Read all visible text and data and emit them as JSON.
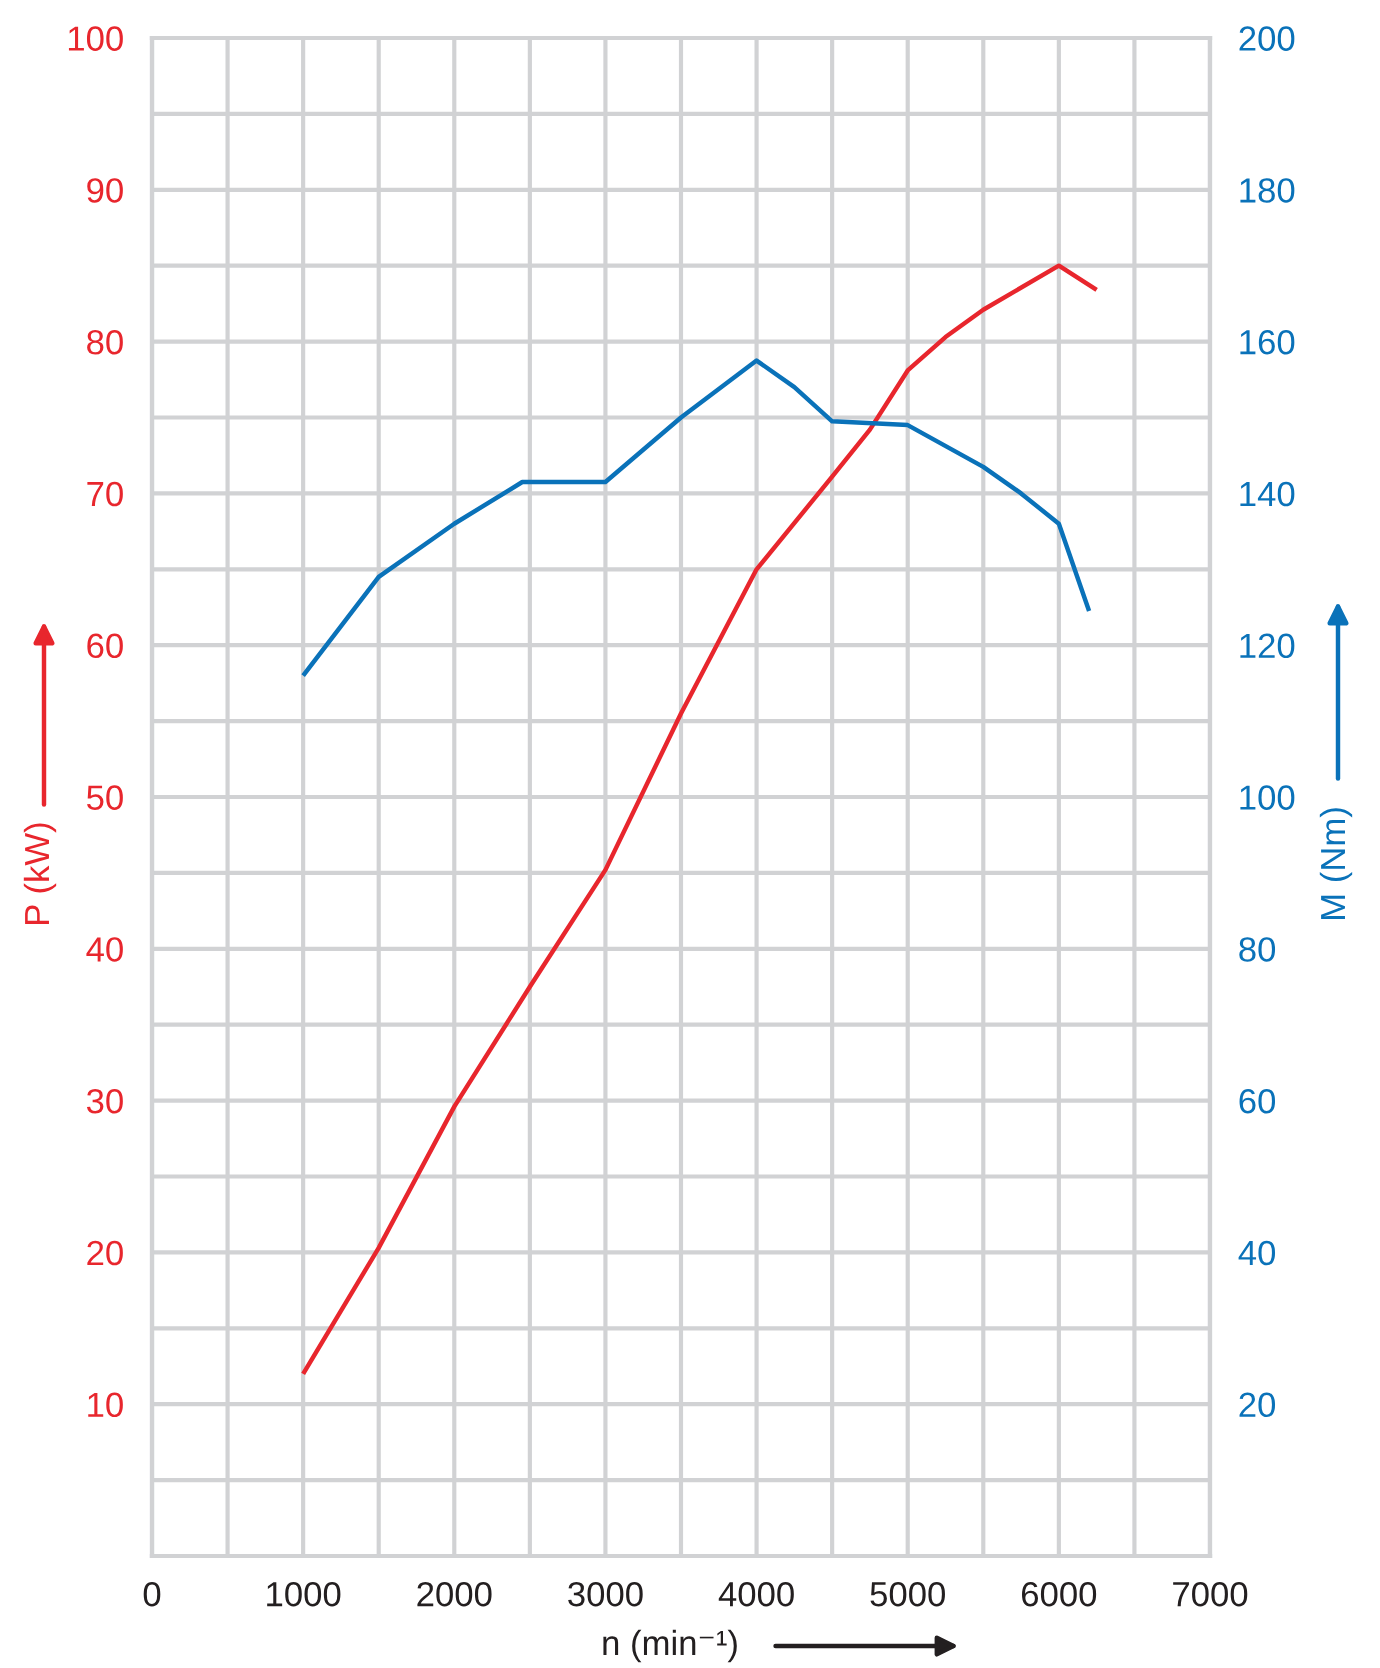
{
  "chart_data": {
    "type": "line",
    "xlabel": "n (min⁻¹)",
    "ylabel": "P (kW)",
    "y2label": "M (Nm)",
    "series": [
      {
        "color": "#e8262d",
        "x": [
          1000,
          1500,
          2000,
          2500,
          3000,
          3500,
          4000,
          4500,
          4750,
          5000,
          5250,
          5500,
          6000,
          6250
        ],
        "values": [
          12,
          20.3,
          29.6,
          37.5,
          45.2,
          55.5,
          65,
          71.1,
          74.2,
          78.1,
          80.3,
          82.1,
          85,
          83.4
        ]
      },
      {
        "color": "#0a72b9",
        "axis": "y2",
        "x": [
          1000,
          1500,
          2000,
          2450,
          3000,
          3500,
          4000,
          4250,
          4500,
          5000,
          5500,
          5750,
          6000,
          6200
        ],
        "values": [
          116,
          129,
          136,
          141.5,
          141.5,
          150,
          157.5,
          154,
          149.5,
          149,
          143.5,
          140,
          136,
          124.5
        ]
      }
    ],
    "xlim": [
      0,
      7000
    ],
    "xticks": [
      0,
      {
        "value": 500,
        "label": null
      },
      1000,
      {
        "value": 1500,
        "label": null
      },
      2000,
      {
        "value": 2500,
        "label": null
      },
      3000,
      {
        "value": 3500,
        "label": null
      },
      4000,
      {
        "value": 4500,
        "label": null
      },
      5000,
      {
        "value": 5500,
        "label": null
      },
      6000,
      {
        "value": 6500,
        "label": null
      },
      7000
    ],
    "ylim": [
      0,
      100
    ],
    "yticks": [
      {
        "value": 0,
        "label": null
      },
      {
        "value": 5,
        "label": null
      },
      10,
      {
        "value": 15,
        "label": null
      },
      20,
      {
        "value": 25,
        "label": null
      },
      30,
      {
        "value": 35,
        "label": null
      },
      40,
      {
        "value": 45,
        "label": null
      },
      50,
      {
        "value": 55,
        "label": null
      },
      60,
      {
        "value": 65,
        "label": null
      },
      70,
      {
        "value": 75,
        "label": null
      },
      80,
      {
        "value": 85,
        "label": null
      },
      90,
      {
        "value": 95,
        "label": null
      },
      100
    ],
    "y2lim": [
      0,
      200
    ],
    "y2ticks": [
      20,
      40,
      60,
      80,
      100,
      120,
      140,
      160,
      180,
      200
    ],
    "grid": true
  }
}
